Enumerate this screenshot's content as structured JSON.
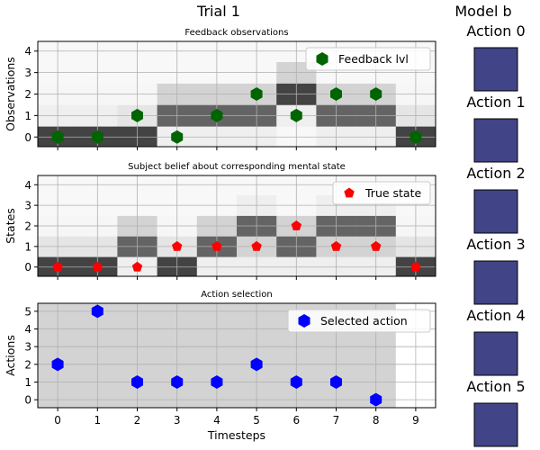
{
  "figure": {
    "title": "Trial 1",
    "side_title": "Model b"
  },
  "chart_data": [
    {
      "type": "scatter",
      "title": "Feedback observations",
      "xlabel": "",
      "ylabel": "Observations",
      "xlim": [
        -0.5,
        9.5
      ],
      "ylim": [
        -0.45,
        4.45
      ],
      "xticks": [
        0,
        1,
        2,
        3,
        4,
        5,
        6,
        7,
        8,
        9
      ],
      "yticks": [
        0,
        1,
        2,
        3,
        4
      ],
      "grid": true,
      "legend": "top-right",
      "series": [
        {
          "name": "Feedback lvl",
          "marker": "hexagon",
          "color": "#006400",
          "x": [
            0,
            1,
            2,
            3,
            4,
            5,
            6,
            7,
            8,
            9
          ],
          "y": [
            0,
            0,
            1,
            0,
            1,
            2,
            1,
            2,
            2,
            0
          ]
        }
      ],
      "heatmap_columns": [
        [
          0.85,
          0.05,
          0.02,
          0.01,
          0.01
        ],
        [
          0.85,
          0.05,
          0.02,
          0.01,
          0.01
        ],
        [
          0.85,
          0.1,
          0.02,
          0.01,
          0.01
        ],
        [
          0.05,
          0.7,
          0.18,
          0.01,
          0.01
        ],
        [
          0.05,
          0.7,
          0.18,
          0.01,
          0.01
        ],
        [
          0.05,
          0.7,
          0.18,
          0.01,
          0.01
        ],
        [
          0.01,
          0.05,
          0.85,
          0.18,
          0.01
        ],
        [
          0.05,
          0.7,
          0.18,
          0.01,
          0.01
        ],
        [
          0.05,
          0.7,
          0.18,
          0.01,
          0.01
        ],
        [
          0.85,
          0.1,
          0.02,
          0.01,
          0.01
        ]
      ]
    },
    {
      "type": "scatter",
      "title": "Subject belief about corresponding mental state",
      "xlabel": "",
      "ylabel": "States",
      "xlim": [
        -0.5,
        9.5
      ],
      "ylim": [
        -0.45,
        4.45
      ],
      "xticks": [
        0,
        1,
        2,
        3,
        4,
        5,
        6,
        7,
        8,
        9
      ],
      "yticks": [
        0,
        1,
        2,
        3,
        4
      ],
      "grid": true,
      "legend": "top-right",
      "series": [
        {
          "name": "True state",
          "marker": "pentagon",
          "color": "#ff0000",
          "x": [
            0,
            1,
            2,
            3,
            4,
            5,
            6,
            7,
            8,
            9
          ],
          "y": [
            0,
            0,
            0,
            1,
            1,
            1,
            2,
            1,
            1,
            0
          ]
        }
      ],
      "heatmap_columns": [
        [
          0.85,
          0.1,
          0.02,
          0.01,
          0.01
        ],
        [
          0.85,
          0.1,
          0.02,
          0.01,
          0.01
        ],
        [
          0.05,
          0.7,
          0.18,
          0.01,
          0.01
        ],
        [
          0.85,
          0.1,
          0.02,
          0.01,
          0.01
        ],
        [
          0.05,
          0.7,
          0.18,
          0.01,
          0.01
        ],
        [
          0.05,
          0.18,
          0.7,
          0.05,
          0.01
        ],
        [
          0.05,
          0.7,
          0.18,
          0.01,
          0.01
        ],
        [
          0.05,
          0.18,
          0.7,
          0.05,
          0.01
        ],
        [
          0.05,
          0.18,
          0.7,
          0.05,
          0.01
        ],
        [
          0.85,
          0.1,
          0.02,
          0.01,
          0.01
        ]
      ]
    },
    {
      "type": "scatter",
      "title": "Action selection",
      "xlabel": "Timesteps",
      "ylabel": "Actions",
      "xlim": [
        -0.5,
        9.5
      ],
      "ylim": [
        -0.45,
        5.45
      ],
      "xticks": [
        0,
        1,
        2,
        3,
        4,
        5,
        6,
        7,
        8,
        9
      ],
      "yticks": [
        0,
        1,
        2,
        3,
        4,
        5
      ],
      "grid": true,
      "legend": "top-right",
      "series": [
        {
          "name": "Selected action",
          "marker": "hexagon",
          "color": "#0000ff",
          "x": [
            0,
            1,
            2,
            3,
            4,
            5,
            6,
            7,
            8
          ],
          "y": [
            2,
            5,
            1,
            1,
            1,
            2,
            1,
            1,
            0
          ]
        }
      ],
      "background_region": {
        "x": [
          -0.5,
          8.5
        ],
        "y": [
          -0.45,
          5.45
        ]
      }
    }
  ],
  "side_panel": {
    "swatch_color": "#414487",
    "actions": [
      {
        "label": "Action 0"
      },
      {
        "label": "Action 1"
      },
      {
        "label": "Action 2"
      },
      {
        "label": "Action 3"
      },
      {
        "label": "Action 4"
      },
      {
        "label": "Action 5"
      }
    ]
  }
}
